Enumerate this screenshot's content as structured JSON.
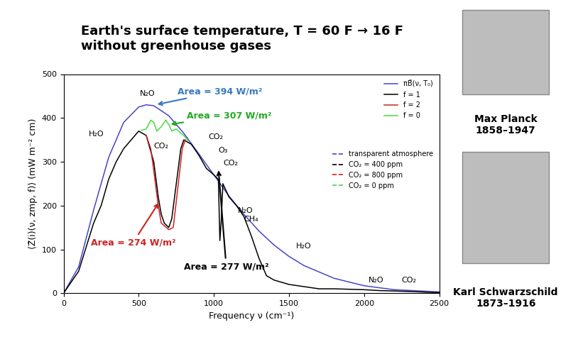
{
  "chart_data": {
    "type": "line",
    "title": "Earth's surface temperature, T = 60 F → 16 F\nwithout greenhouse gases",
    "x_label": "Frequency ν (cm⁻¹)",
    "y_label": "⟨Z̃(i)(ν, zmp, f)⟩ (mW m⁻² cm)",
    "xlim": [
      0,
      2500
    ],
    "xticks": [
      0,
      500,
      1000,
      1500,
      2000,
      2500
    ],
    "ylim": [
      0,
      500
    ],
    "yticks": [
      0,
      100,
      200,
      300,
      400,
      500
    ],
    "grid": false,
    "legend": "upper right",
    "series": [
      {
        "name": "transparent atmosphere",
        "label": "πB̃(ν, T₀)",
        "color": "#4646c8",
        "line_style": "solid",
        "x": [
          0,
          100,
          200,
          300,
          400,
          500,
          550,
          600,
          700,
          800,
          900,
          1000,
          1100,
          1200,
          1300,
          1400,
          1500,
          1600,
          1800,
          2000,
          2200,
          2500
        ],
        "values": [
          0,
          60,
          190,
          310,
          390,
          425,
          430,
          428,
          405,
          365,
          318,
          270,
          222,
          180,
          142,
          110,
          84,
          63,
          34,
          17,
          8,
          3
        ]
      },
      {
        "name": "CO₂ = 400 ppm",
        "label": "f = 1",
        "color": "#000000",
        "line_style": "solid",
        "x": [
          0,
          100,
          200,
          250,
          300,
          350,
          400,
          450,
          500,
          550,
          600,
          630,
          650,
          670,
          700,
          720,
          750,
          780,
          800,
          850,
          900,
          950,
          1000,
          1030,
          1040,
          1050,
          1060,
          1100,
          1150,
          1200,
          1250,
          1300,
          1350,
          1400,
          1500,
          1600,
          1700,
          1800,
          2000,
          2100,
          2200,
          2300,
          2500
        ],
        "values": [
          0,
          50,
          160,
          200,
          260,
          300,
          330,
          350,
          370,
          360,
          300,
          220,
          180,
          160,
          150,
          170,
          250,
          330,
          350,
          340,
          315,
          285,
          270,
          260,
          120,
          170,
          250,
          220,
          200,
          175,
          130,
          80,
          40,
          30,
          20,
          15,
          10,
          10,
          8,
          6,
          5,
          4,
          1
        ]
      },
      {
        "name": "CO₂ = 800 ppm",
        "label": "f = 2",
        "color": "#cc2222",
        "line_style": "solid",
        "x": [
          550,
          580,
          600,
          630,
          650,
          700,
          730,
          760,
          790,
          810
        ],
        "values": [
          360,
          330,
          280,
          200,
          160,
          145,
          150,
          240,
          330,
          350
        ]
      },
      {
        "name": "CO₂ = 0 ppm",
        "label": "f = 0",
        "color": "#44dd44",
        "line_style": "solid",
        "x": [
          520,
          550,
          580,
          600,
          620,
          650,
          680,
          700,
          720,
          750,
          780,
          800,
          830
        ],
        "values": [
          372,
          375,
          395,
          390,
          370,
          380,
          395,
          385,
          370,
          375,
          365,
          360,
          348
        ]
      }
    ],
    "annotations": [
      {
        "text": "Area = 394 W/m²",
        "color": "#3a78c2",
        "x": 760,
        "y": 455,
        "arrow_x": 610,
        "arrow_y": 430
      },
      {
        "text": "Area = 307 W/m²",
        "color": "#22aa22",
        "x": 820,
        "y": 400,
        "arrow_x": 700,
        "arrow_y": 385
      },
      {
        "text": "Area = 274 W/m²",
        "color": "#cc2222",
        "x": 180,
        "y": 110,
        "arrow_x": 640,
        "arrow_y": 210
      },
      {
        "text": "Area = 277 W/m²",
        "color": "#000000",
        "x": 800,
        "y": 55,
        "arrow_x": 1030,
        "arrow_y": 285
      }
    ],
    "molecule_labels": [
      {
        "text": "H₂O",
        "x": 220,
        "y": 355
      },
      {
        "text": "N₂O",
        "x": 560,
        "y": 448
      },
      {
        "text": "CO₂",
        "x": 650,
        "y": 328
      },
      {
        "text": "CO₂",
        "x": 1015,
        "y": 348
      },
      {
        "text": "O₃",
        "x": 1060,
        "y": 318
      },
      {
        "text": "CO₂",
        "x": 1110,
        "y": 288
      },
      {
        "text": "N₂O",
        "x": 1210,
        "y": 180
      },
      {
        "text": "CH₄",
        "x": 1250,
        "y": 160
      },
      {
        "text": "H₂O",
        "x": 1600,
        "y": 100
      },
      {
        "text": "N₂O",
        "x": 2080,
        "y": 22
      },
      {
        "text": "CO₂",
        "x": 2300,
        "y": 22
      }
    ],
    "portraits": [
      {
        "name": "Max Planck",
        "years": "1858–1947"
      },
      {
        "name": "Karl Schwarzschild",
        "years": "1873–1916"
      }
    ]
  }
}
